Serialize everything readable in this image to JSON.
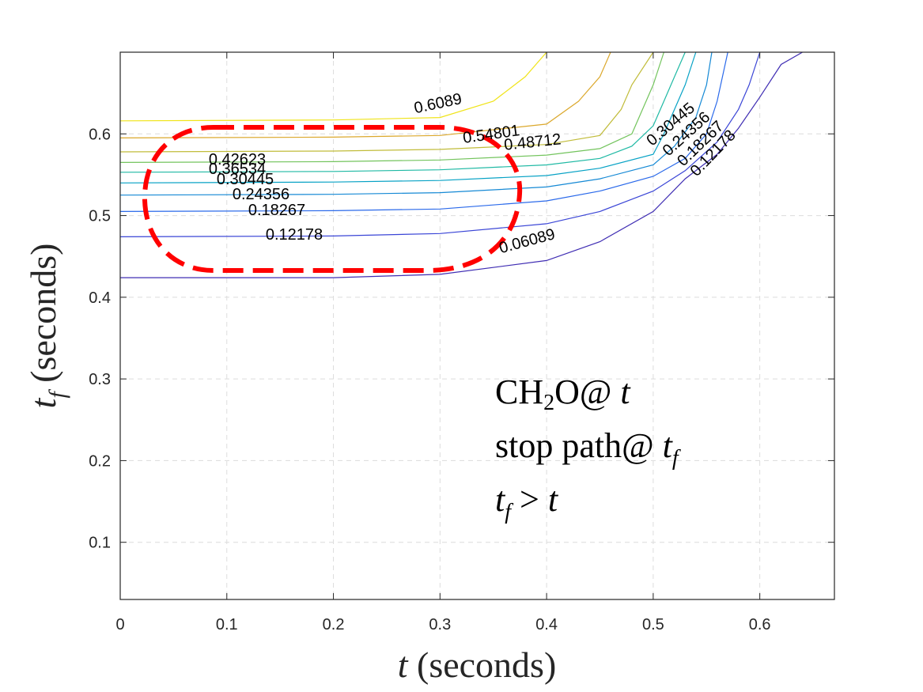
{
  "chart_data": {
    "type": "contour",
    "xlabel": "t (seconds)",
    "ylabel": "t_f (seconds)",
    "xlim": [
      0,
      0.67
    ],
    "ylim": [
      0.03,
      0.7
    ],
    "xticks": [
      0,
      0.1,
      0.2,
      0.3,
      0.4,
      0.5,
      0.6
    ],
    "xtick_labels": [
      "0",
      "0.1",
      "0.2",
      "0.3",
      "0.4",
      "0.5",
      "0.6"
    ],
    "yticks": [
      0.1,
      0.2,
      0.3,
      0.4,
      0.5,
      0.6
    ],
    "ytick_labels": [
      "0.1",
      "0.2",
      "0.3",
      "0.4",
      "0.5",
      "0.6"
    ],
    "grid": true,
    "contour_levels": [
      {
        "level": "0.06089",
        "color": "#3f2db3",
        "points": [
          [
            0.0,
            0.424
          ],
          [
            0.2,
            0.424
          ],
          [
            0.3,
            0.428
          ],
          [
            0.4,
            0.445
          ],
          [
            0.45,
            0.468
          ],
          [
            0.5,
            0.505
          ],
          [
            0.53,
            0.545
          ],
          [
            0.56,
            0.575
          ],
          [
            0.58,
            0.607
          ],
          [
            0.6,
            0.645
          ],
          [
            0.62,
            0.685
          ],
          [
            0.64,
            0.7
          ]
        ]
      },
      {
        "level": "0.12178",
        "color": "#3a45d6",
        "points": [
          [
            0.0,
            0.474
          ],
          [
            0.2,
            0.475
          ],
          [
            0.3,
            0.478
          ],
          [
            0.4,
            0.49
          ],
          [
            0.45,
            0.505
          ],
          [
            0.5,
            0.53
          ],
          [
            0.53,
            0.555
          ],
          [
            0.56,
            0.59
          ],
          [
            0.58,
            0.63
          ],
          [
            0.59,
            0.66
          ],
          [
            0.6,
            0.7
          ]
        ]
      },
      {
        "level": "0.18267",
        "color": "#2a69ea",
        "points": [
          [
            0.0,
            0.505
          ],
          [
            0.2,
            0.506
          ],
          [
            0.3,
            0.508
          ],
          [
            0.4,
            0.518
          ],
          [
            0.45,
            0.53
          ],
          [
            0.5,
            0.548
          ],
          [
            0.53,
            0.57
          ],
          [
            0.55,
            0.6
          ],
          [
            0.56,
            0.64
          ],
          [
            0.57,
            0.7
          ]
        ]
      },
      {
        "level": "0.24356",
        "color": "#1589d5",
        "points": [
          [
            0.0,
            0.525
          ],
          [
            0.2,
            0.526
          ],
          [
            0.3,
            0.528
          ],
          [
            0.4,
            0.535
          ],
          [
            0.45,
            0.545
          ],
          [
            0.5,
            0.562
          ],
          [
            0.52,
            0.585
          ],
          [
            0.54,
            0.62
          ],
          [
            0.55,
            0.66
          ],
          [
            0.555,
            0.7
          ]
        ]
      },
      {
        "level": "0.30445",
        "color": "#07a2c5",
        "points": [
          [
            0.0,
            0.54
          ],
          [
            0.2,
            0.541
          ],
          [
            0.3,
            0.543
          ],
          [
            0.4,
            0.549
          ],
          [
            0.45,
            0.558
          ],
          [
            0.5,
            0.575
          ],
          [
            0.51,
            0.6
          ],
          [
            0.52,
            0.63
          ],
          [
            0.53,
            0.66
          ],
          [
            0.54,
            0.7
          ]
        ]
      },
      {
        "level": "0.36534",
        "color": "#1fb9a4",
        "points": [
          [
            0.0,
            0.553
          ],
          [
            0.2,
            0.554
          ],
          [
            0.3,
            0.556
          ],
          [
            0.4,
            0.562
          ],
          [
            0.45,
            0.57
          ],
          [
            0.48,
            0.585
          ],
          [
            0.5,
            0.61
          ],
          [
            0.51,
            0.64
          ],
          [
            0.52,
            0.67
          ],
          [
            0.53,
            0.7
          ]
        ]
      },
      {
        "level": "0.42623",
        "color": "#73c45d",
        "points": [
          [
            0.0,
            0.565
          ],
          [
            0.2,
            0.566
          ],
          [
            0.3,
            0.568
          ],
          [
            0.4,
            0.574
          ],
          [
            0.45,
            0.582
          ],
          [
            0.48,
            0.6
          ],
          [
            0.49,
            0.63
          ],
          [
            0.5,
            0.66
          ],
          [
            0.51,
            0.7
          ]
        ]
      },
      {
        "level": "0.48712",
        "color": "#c1bc3a",
        "points": [
          [
            0.0,
            0.578
          ],
          [
            0.2,
            0.579
          ],
          [
            0.3,
            0.581
          ],
          [
            0.4,
            0.587
          ],
          [
            0.45,
            0.598
          ],
          [
            0.47,
            0.63
          ],
          [
            0.48,
            0.66
          ],
          [
            0.5,
            0.7
          ]
        ]
      },
      {
        "level": "0.54801",
        "color": "#dba82c",
        "points": [
          [
            0.0,
            0.595
          ],
          [
            0.2,
            0.596
          ],
          [
            0.3,
            0.598
          ],
          [
            0.4,
            0.612
          ],
          [
            0.43,
            0.64
          ],
          [
            0.45,
            0.67
          ],
          [
            0.46,
            0.7
          ]
        ]
      },
      {
        "level": "0.6089",
        "color": "#f0e419",
        "points": [
          [
            0.0,
            0.616
          ],
          [
            0.2,
            0.617
          ],
          [
            0.3,
            0.62
          ],
          [
            0.35,
            0.64
          ],
          [
            0.38,
            0.67
          ],
          [
            0.4,
            0.7
          ]
        ]
      }
    ],
    "contour_labels": [
      "0.6089",
      "0.54801",
      "0.48712",
      "0.42623",
      "0.36534",
      "0.30445",
      "0.24356",
      "0.18267",
      "0.12178",
      "0.06089",
      "0.30445",
      "0.24356",
      "0.18267",
      "0.12178"
    ],
    "highlight_ellipse": {
      "color": "#ff0000",
      "style": "dashed"
    },
    "annotation_lines": [
      "CH2O@ t",
      "stop path@ t_f",
      "t_f > t"
    ]
  }
}
